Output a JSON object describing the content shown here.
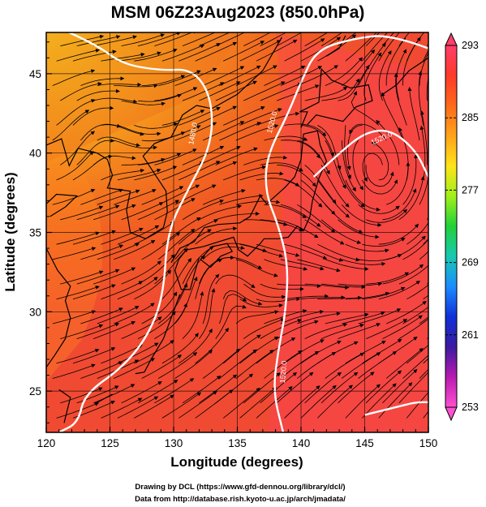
{
  "title": "MSM 06Z23Aug2023 (850.0hPa)",
  "xlabel": "Longitude (degrees)",
  "ylabel": "Latitude  (degrees)",
  "credits": [
    "Drawing by DCL (https://www.gfd-dennou.org/library/dcl/)",
    "Data from http://database.rish.kyoto-u.ac.jp/arch/jmadata/"
  ],
  "colorbar": {
    "min": 253,
    "max": 293,
    "ticks": [
      "293",
      "285",
      "277",
      "269",
      "261",
      "253"
    ],
    "colors": [
      "#ff3e6a",
      "#ff3a2a",
      "#ff6a1a",
      "#ffa31a",
      "#ffe31a",
      "#a0f01a",
      "#22d03a",
      "#18c9b0",
      "#1a8cff",
      "#1030d8",
      "#3a1aa0",
      "#b81ab0",
      "#ff50d0"
    ]
  },
  "chart_data": {
    "type": "heatmap",
    "variable": "850.0hPa",
    "x_range": [
      120,
      150
    ],
    "y_range": [
      22.4,
      47.6
    ],
    "x_ticks": [
      120,
      125,
      130,
      135,
      140,
      145,
      150
    ],
    "y_ticks": [
      25,
      30,
      35,
      40,
      45
    ],
    "value_range": [
      253,
      293
    ],
    "contour_labels": [
      "1480.0",
      "1520.0",
      "1520.0",
      "1520.0"
    ],
    "grid": true
  }
}
